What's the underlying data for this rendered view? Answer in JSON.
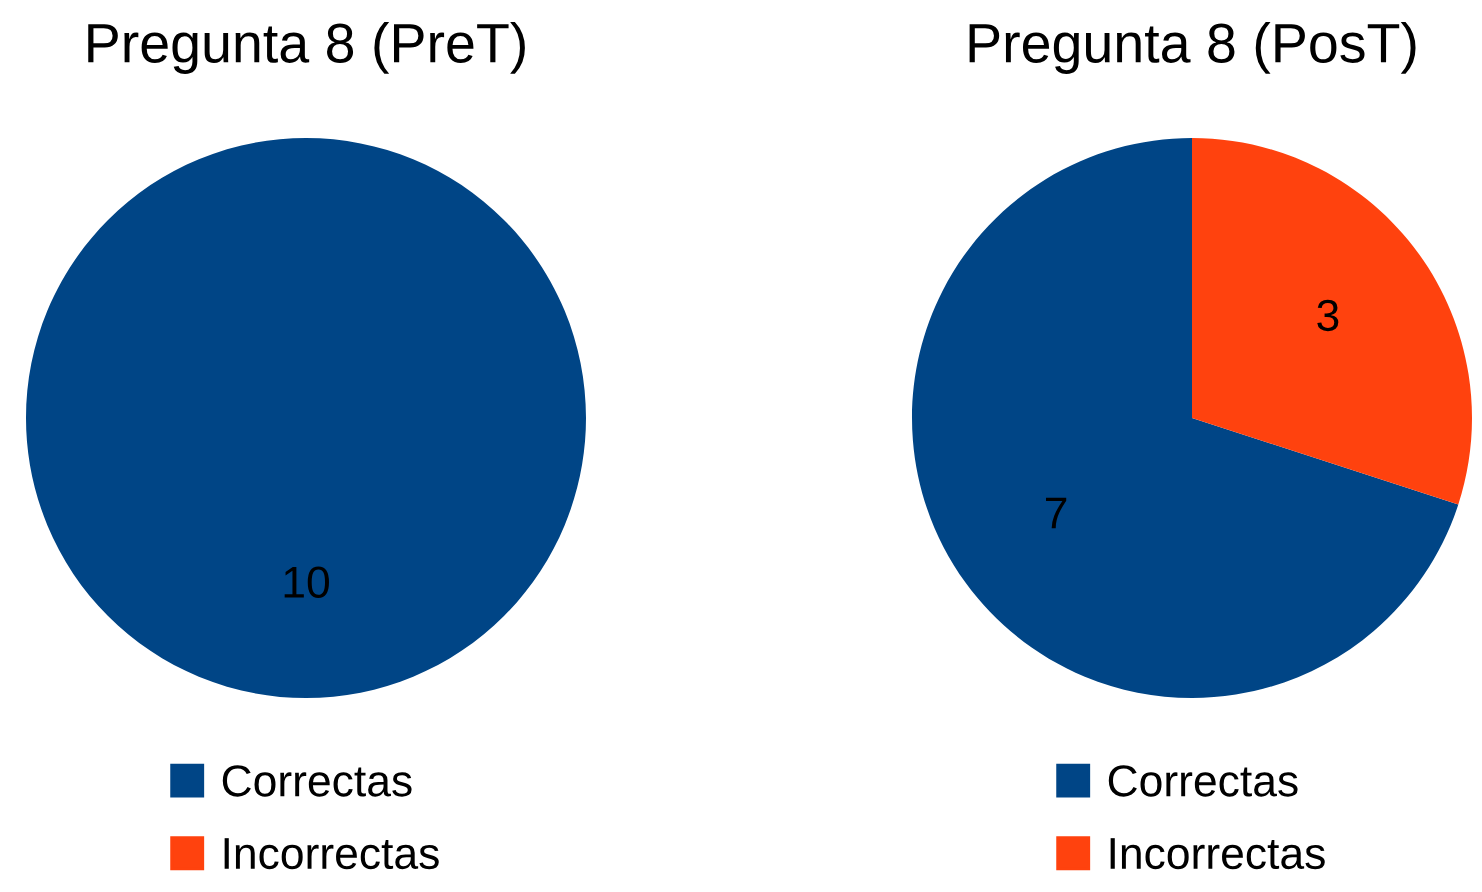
{
  "chart_data": [
    {
      "type": "pie",
      "title": "Pregunta 8 (PreT)",
      "categories": [
        "Correctas",
        "Incorrectas"
      ],
      "values": [
        10,
        0
      ],
      "colors": [
        "#004586",
        "#ff420e"
      ],
      "value_labels": [
        "10",
        null
      ],
      "legend": "bottom"
    },
    {
      "type": "pie",
      "title": "Pregunta 8 (PosT)",
      "categories": [
        "Correctas",
        "Incorrectas"
      ],
      "values": [
        7,
        3
      ],
      "colors": [
        "#004586",
        "#ff420e"
      ],
      "data_labels": true,
      "legend": "bottom"
    }
  ]
}
